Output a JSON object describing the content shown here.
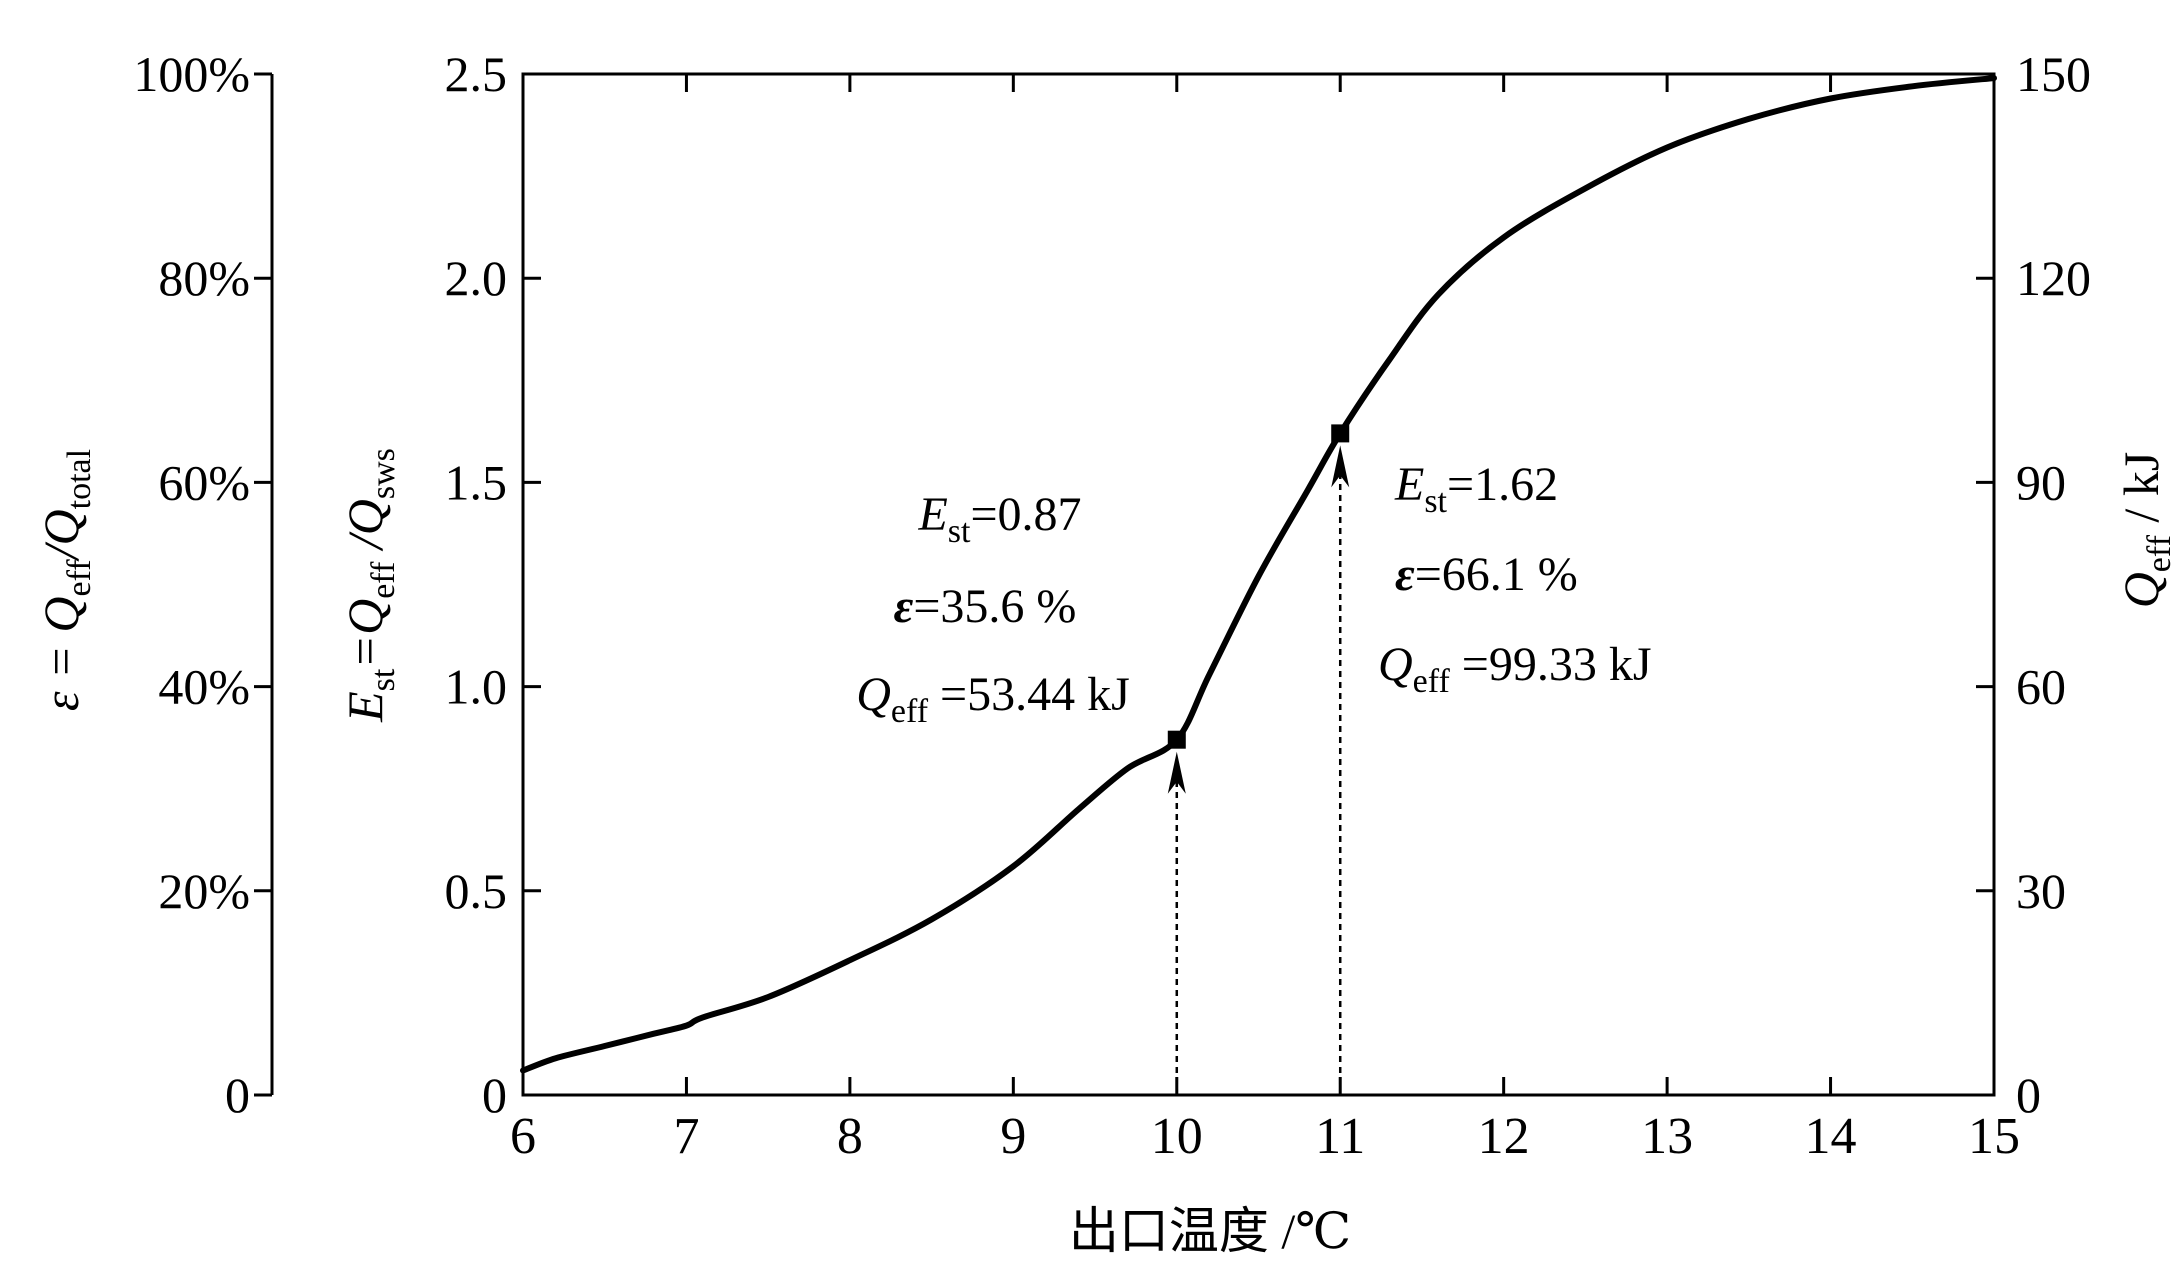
{
  "chart_data": {
    "type": "line",
    "xlabel": "出口温度 /℃",
    "ylabel": {
      "main": "E",
      "sub": "st",
      "mid": "=Q",
      "sub2": "eff",
      "mid2": " /Q",
      "sub3": "sws"
    },
    "y2label": {
      "main": "Q",
      "sub": "eff",
      "tail": " / kJ"
    },
    "y3label": {
      "main": "ε = Q",
      "sub": "eff",
      "mid": "/Q",
      "sub2": "total"
    },
    "xlim": [
      6,
      15
    ],
    "ylim": [
      0,
      2.5
    ],
    "y2lim": [
      0,
      150
    ],
    "y3lim": [
      0,
      100
    ],
    "x_ticks": [
      "6",
      "7",
      "8",
      "9",
      "10",
      "11",
      "12",
      "13",
      "14",
      "15"
    ],
    "y_ticks": [
      "0",
      "0.5",
      "1.0",
      "1.5",
      "2.0",
      "2.5"
    ],
    "y2_ticks": [
      "0",
      "30",
      "60",
      "90",
      "120",
      "150"
    ],
    "y3_ticks": [
      "0",
      "20%",
      "40%",
      "60%",
      "80%",
      "100%"
    ],
    "grid": false,
    "series": [
      {
        "x": [
          6.0,
          6.2,
          6.5,
          6.8,
          7.0,
          7.1,
          7.5,
          8.0,
          8.5,
          9.0,
          9.4,
          9.7,
          10.0,
          10.2,
          10.5,
          10.8,
          11.0,
          11.3,
          11.6,
          12.0,
          12.5,
          13.0,
          13.5,
          14.0,
          14.5,
          15.0
        ],
        "y": [
          0.06,
          0.09,
          0.12,
          0.15,
          0.17,
          0.19,
          0.24,
          0.33,
          0.43,
          0.56,
          0.7,
          0.8,
          0.87,
          1.03,
          1.27,
          1.48,
          1.62,
          1.8,
          1.96,
          2.1,
          2.22,
          2.32,
          2.39,
          2.44,
          2.47,
          2.49
        ]
      }
    ],
    "points": [
      {
        "x": 10,
        "y": 0.87,
        "label_e": "E",
        "label_e_sub": "st",
        "label_e_val": "=0.87",
        "label_eps": "ε",
        "label_eps_val": "=35.6 %",
        "label_q": "Q",
        "label_q_sub": "eff",
        "label_q_val": " =53.44 kJ"
      },
      {
        "x": 11,
        "y": 1.62,
        "label_e": "E",
        "label_e_sub": "st",
        "label_e_val": "=1.62",
        "label_eps": "ε",
        "label_eps_val": "=66.1 %",
        "label_q": "Q",
        "label_q_sub": "eff",
        "label_q_val": " =99.33 kJ"
      }
    ]
  }
}
